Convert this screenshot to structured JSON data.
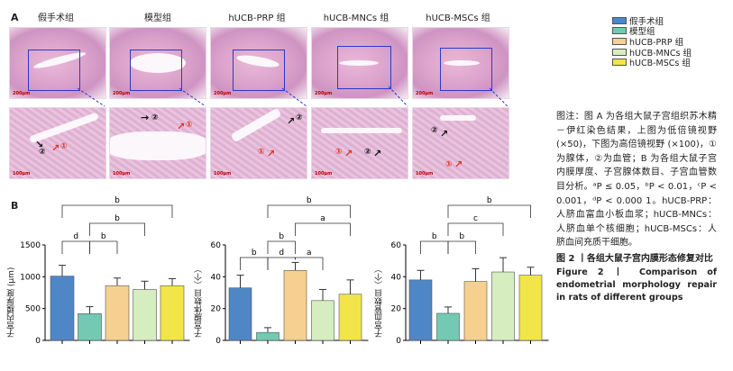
{
  "panel_a_label": "A",
  "panel_b_label": "B",
  "groups": [
    "假手术组",
    "模型组",
    "hUCB-PRP 组",
    "hUCB-MNCs 组",
    "hUCB-MSCs 组"
  ],
  "scale_low": "200μm",
  "scale_high": "100μm",
  "markers": {
    "one": "①",
    "two": "②"
  },
  "colors": {
    "sham": "#4f86c6",
    "model": "#73c9b1",
    "prp": "#f6d08e",
    "mncs": "#d6edc0",
    "mscs": "#f1e54a"
  },
  "legend": [
    {
      "label": "假手术组",
      "color": "#4f86c6"
    },
    {
      "label": "模型组",
      "color": "#73c9b1"
    },
    {
      "label": "hUCB-PRP 组",
      "color": "#f6d08e"
    },
    {
      "label": "hUCB-MNCs 组",
      "color": "#d6edc0"
    },
    {
      "label": "hUCB-MSCs 组",
      "color": "#f1e54a"
    }
  ],
  "caption": {
    "body": "图注：图 A 为各组大鼠子宫组织苏木精－伊红染色结果，上图为低倍镜视野 (×50)，下图为高倍镜视野 (×100)，①为腺体，②为血管；B 为各组大鼠子宫内膜厚度、子宫腺体数目、子宫血管数目分析。ᵃP ≤ 0.05，ᵇP < 0.01，ᶜP < 0.001，ᵈP < 0.000 1。hUCB-PRP：人脐血富血小板血浆；hUCB-MNCs：人脐血单个核细胞；hUCB-MSCs：人脐血间充质干细胞。",
    "title_zh": "图 2 丨各组大鼠子宫内膜形态修复对比",
    "title_en": "Figure 2 丨 Comparison of endometrial morphology repair in rats of different groups"
  },
  "chart_data": [
    {
      "type": "bar",
      "ylabel": "子宫内膜厚度 (μm)",
      "ylim": [
        0,
        1500
      ],
      "yticks": [
        0,
        500,
        1000,
        1500
      ],
      "series": [
        {
          "values": [
            1010,
            420,
            860,
            800,
            860
          ],
          "errors": [
            170,
            110,
            120,
            130,
            110
          ]
        }
      ],
      "significance": [
        {
          "from": 0,
          "to": 4,
          "label": "b",
          "level": 1
        },
        {
          "from": 1,
          "to": 3,
          "label": "b",
          "level": 2
        },
        {
          "from": 0,
          "to": 1,
          "label": "d",
          "level": 3
        },
        {
          "from": 1,
          "to": 2,
          "label": "b",
          "level": 3
        }
      ]
    },
    {
      "type": "bar",
      "ylabel": "子宫腺体数目（个）",
      "ylim": [
        0,
        60
      ],
      "yticks": [
        0,
        20,
        40,
        60
      ],
      "series": [
        {
          "values": [
            33,
            5,
            44,
            25,
            29
          ],
          "errors": [
            8,
            3,
            5,
            7,
            9
          ]
        }
      ],
      "significance": [
        {
          "from": 1,
          "to": 4,
          "label": "b",
          "level": 1
        },
        {
          "from": 1,
          "to": 4,
          "label": "a",
          "level": 2,
          "fromOverride": 2
        },
        {
          "from": 1,
          "to": 2,
          "label": "b",
          "level": 3
        },
        {
          "from": 0,
          "to": 1,
          "label": "b",
          "level": 4
        },
        {
          "from": 1,
          "to": 2,
          "label": "d",
          "level": 4,
          "short": true
        },
        {
          "from": 2,
          "to": 3,
          "label": "a",
          "level": 4
        }
      ]
    },
    {
      "type": "bar",
      "ylabel": "子宫血管数目（个）",
      "ylim": [
        0,
        60
      ],
      "yticks": [
        0,
        20,
        40,
        60
      ],
      "series": [
        {
          "values": [
            38,
            17,
            37,
            43,
            41
          ],
          "errors": [
            6,
            4,
            8,
            9,
            5
          ]
        }
      ],
      "significance": [
        {
          "from": 1,
          "to": 4,
          "label": "b",
          "level": 1
        },
        {
          "from": 1,
          "to": 3,
          "label": "c",
          "level": 2
        },
        {
          "from": 0,
          "to": 1,
          "label": "b",
          "level": 3
        },
        {
          "from": 1,
          "to": 2,
          "label": "b",
          "level": 3
        }
      ]
    }
  ]
}
